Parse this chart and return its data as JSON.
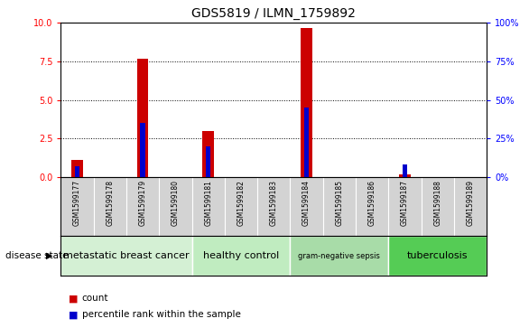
{
  "title": "GDS5819 / ILMN_1759892",
  "samples": [
    "GSM1599177",
    "GSM1599178",
    "GSM1599179",
    "GSM1599180",
    "GSM1599181",
    "GSM1599182",
    "GSM1599183",
    "GSM1599184",
    "GSM1599185",
    "GSM1599186",
    "GSM1599187",
    "GSM1599188",
    "GSM1599189"
  ],
  "count_values": [
    1.1,
    0,
    7.7,
    0,
    3.0,
    0,
    0,
    9.7,
    0,
    0,
    0.2,
    0,
    0
  ],
  "percentile_values": [
    7,
    0,
    35,
    0,
    20,
    0,
    0,
    45,
    0,
    0,
    8,
    0,
    0
  ],
  "disease_groups": [
    {
      "label": "metastatic breast cancer",
      "start": 0,
      "end": 3,
      "color": "#d4f0d4"
    },
    {
      "label": "healthy control",
      "start": 4,
      "end": 6,
      "color": "#c0ecc0"
    },
    {
      "label": "gram-negative sepsis",
      "start": 7,
      "end": 9,
      "color": "#a8dca8"
    },
    {
      "label": "tuberculosis",
      "start": 10,
      "end": 12,
      "color": "#55cc55"
    }
  ],
  "ylim_left": [
    0,
    10
  ],
  "ylim_right": [
    0,
    100
  ],
  "yticks_left": [
    0,
    2.5,
    5,
    7.5,
    10
  ],
  "yticks_right": [
    0,
    25,
    50,
    75,
    100
  ],
  "bar_color": "#cc0000",
  "percentile_color": "#0000cc",
  "bar_width": 0.35,
  "percentile_bar_width": 0.15,
  "count_label": "count",
  "percentile_label": "percentile rank within the sample",
  "disease_state_label": "disease state",
  "sample_bg_color": "#d3d3d3",
  "plot_bg_color": "#ffffff"
}
